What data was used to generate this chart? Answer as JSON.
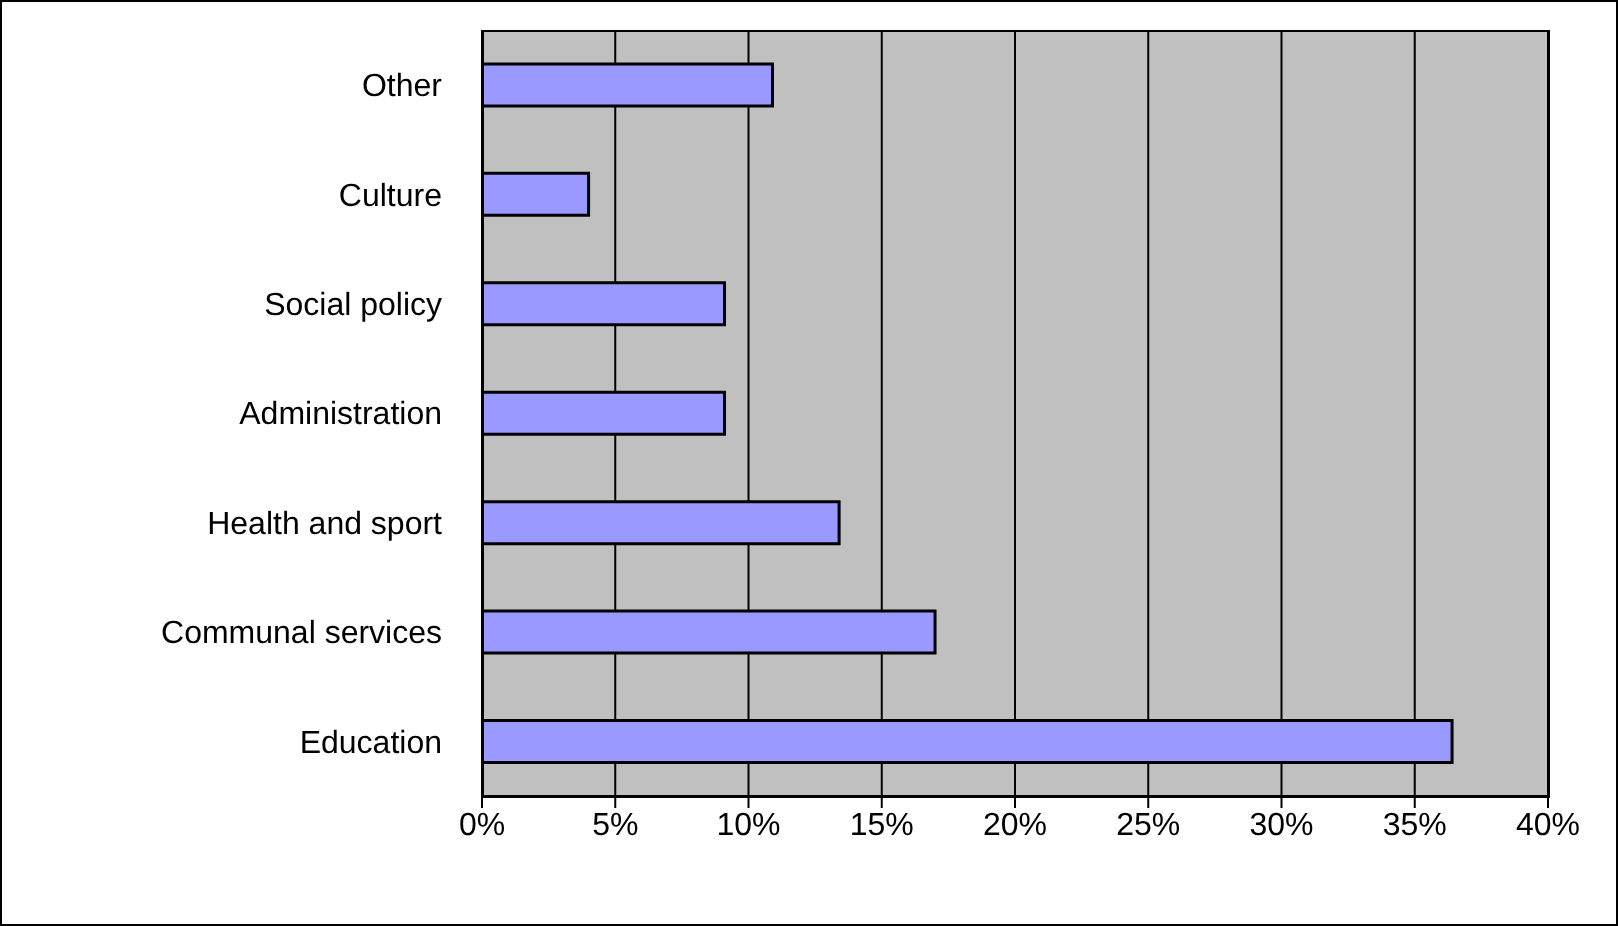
{
  "chart_data": {
    "type": "bar",
    "orientation": "horizontal",
    "categories": [
      "Other",
      "Culture",
      "Social policy",
      "Administration",
      "Health and sport",
      "Communal services",
      "Education"
    ],
    "values": [
      10.9,
      4.0,
      9.1,
      9.1,
      13.4,
      17.0,
      36.4
    ],
    "color": "#9999ff",
    "xlim": [
      0,
      40
    ],
    "xticks": [
      {
        "value": 0,
        "label": "0%"
      },
      {
        "value": 5,
        "label": "5%"
      },
      {
        "value": 10,
        "label": "10%"
      },
      {
        "value": 15,
        "label": "15%"
      },
      {
        "value": 20,
        "label": "20%"
      },
      {
        "value": 25,
        "label": "25%"
      },
      {
        "value": 30,
        "label": "30%"
      },
      {
        "value": 35,
        "label": "35%"
      },
      {
        "value": 40,
        "label": "40%"
      }
    ],
    "grid": "x",
    "legend": false
  }
}
